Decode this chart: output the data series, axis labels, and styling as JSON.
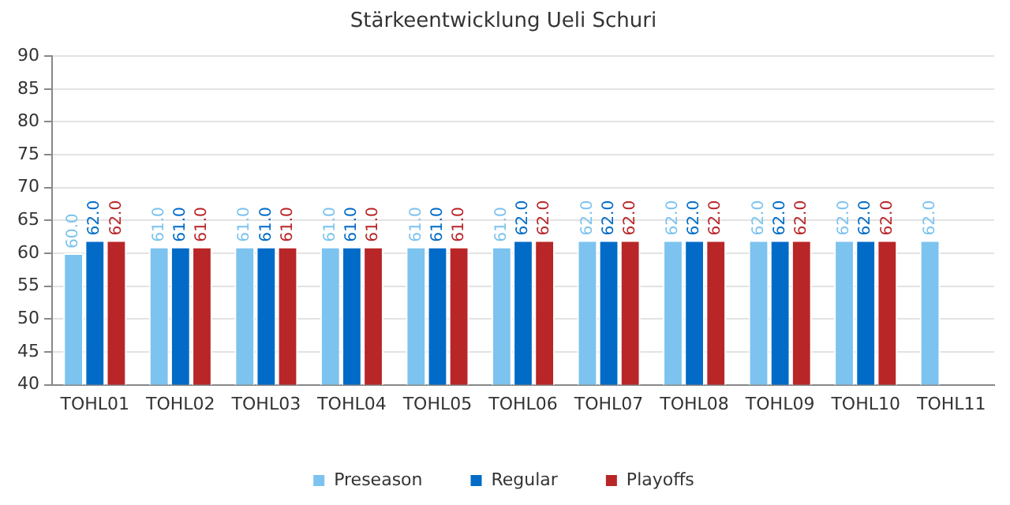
{
  "chart_data": {
    "type": "bar",
    "title": "Stärkeentwicklung Ueli Schuri",
    "categories": [
      "TOHL01",
      "TOHL02",
      "TOHL03",
      "TOHL04",
      "TOHL05",
      "TOHL06",
      "TOHL07",
      "TOHL08",
      "TOHL09",
      "TOHL10",
      "TOHL11"
    ],
    "series": [
      {
        "name": "Preseason",
        "color": "#7cc3ef",
        "values": [
          60,
          61,
          61,
          61,
          61,
          61,
          62,
          62,
          62,
          62,
          62
        ],
        "value_labels": [
          "60.0",
          "61.0",
          "61.0",
          "61.0",
          "61.0",
          "61.0",
          "62.0",
          "62.0",
          "62.0",
          "62.0",
          "62.0"
        ]
      },
      {
        "name": "Regular",
        "color": "#016bc7",
        "values": [
          62,
          61,
          61,
          61,
          61,
          62,
          62,
          62,
          62,
          62,
          null
        ],
        "value_labels": [
          "62.0",
          "61.0",
          "61.0",
          "61.0",
          "61.0",
          "62.0",
          "62.0",
          "62.0",
          "62.0",
          "62.0",
          null
        ]
      },
      {
        "name": "Playoffs",
        "color": "#b82628",
        "values": [
          62,
          61,
          61,
          61,
          61,
          62,
          62,
          62,
          62,
          62,
          null
        ],
        "value_labels": [
          "62.0",
          "61.0",
          "61.0",
          "61.0",
          "61.0",
          "62.0",
          "62.0",
          "62.0",
          "62.0",
          "62.0",
          null
        ]
      }
    ],
    "ylim": [
      40,
      90
    ],
    "yticks": [
      40,
      45,
      50,
      55,
      60,
      65,
      70,
      75,
      80,
      85,
      90
    ],
    "grid": "y",
    "legend": "bottom"
  }
}
